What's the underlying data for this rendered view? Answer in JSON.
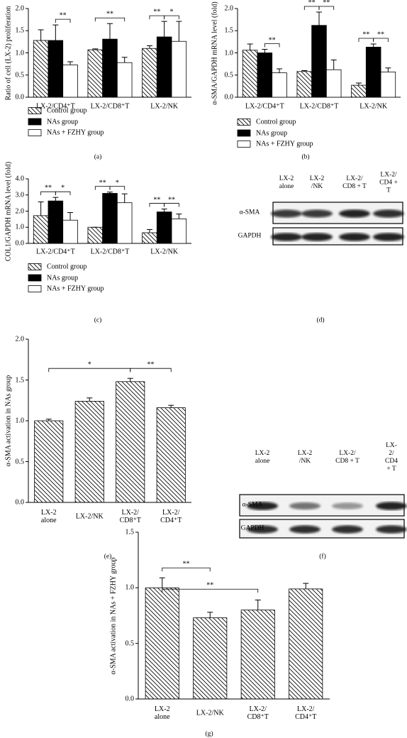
{
  "chart_data": [
    {
      "type": "grouped-bar",
      "panel_label": "(a)",
      "y_label": "Ratio of cell (LX-2) proliferation",
      "categories": [
        "LX-2/CD4⁺T",
        "LX-2/CD8⁺T",
        "LX-2/NK"
      ],
      "series": [
        {
          "name": "Control group",
          "color": "#ffffff",
          "hatch": true,
          "values": [
            1.28,
            1.07,
            1.1
          ],
          "errors": [
            0.24,
            0.02,
            0.06
          ]
        },
        {
          "name": "NAs group",
          "color": "#000000",
          "values": [
            1.28,
            1.31,
            1.36
          ],
          "errors": [
            0.35,
            0.35,
            0.35
          ]
        },
        {
          "name": "NAs + FZHY group",
          "color": "#ffffff",
          "values": [
            0.73,
            0.78,
            1.26
          ],
          "errors": [
            0.07,
            0.12,
            0.45
          ]
        }
      ],
      "annotations": [
        "**",
        "**",
        "**",
        "*"
      ],
      "ylim": [
        0,
        2.0
      ],
      "yticks": [
        {
          "value": 0,
          "label": "0.0"
        },
        {
          "value": 0.5,
          "label": "0.5"
        },
        {
          "value": 1,
          "label": "1.0"
        },
        {
          "value": 1.5,
          "label": "1.5"
        },
        {
          "value": 2,
          "label": "2.0"
        }
      ]
    },
    {
      "type": "grouped-bar",
      "panel_label": "(b)",
      "y_label": "α-SMA/GAPDH mRNA level (fold)",
      "categories": [
        "LX-2/CD4⁺T",
        "LX-2/CD8⁺T",
        "LX-2/NK"
      ],
      "series": [
        {
          "name": "Control group",
          "color": "#ffffff",
          "hatch": true,
          "values": [
            1.06,
            0.58,
            0.27
          ],
          "errors": [
            0.14,
            0.02,
            0.05
          ]
        },
        {
          "name": "NAs group",
          "color": "#000000",
          "values": [
            1.0,
            1.62,
            1.13
          ],
          "errors": [
            0.08,
            0.3,
            0.07
          ]
        },
        {
          "name": "NAs + FZHY group",
          "color": "#ffffff",
          "values": [
            0.55,
            0.62,
            0.57
          ],
          "errors": [
            0.09,
            0.22,
            0.09
          ]
        }
      ],
      "annotations": [
        "**",
        "**",
        "**",
        "**",
        "**"
      ],
      "ylim": [
        0,
        2.0
      ],
      "yticks": [
        {
          "value": 0,
          "label": "0.0"
        },
        {
          "value": 0.5,
          "label": "0.5"
        },
        {
          "value": 1,
          "label": "1.0"
        },
        {
          "value": 1.5,
          "label": "1.5"
        },
        {
          "value": 2,
          "label": "2.0"
        }
      ]
    },
    {
      "type": "grouped-bar",
      "panel_label": "(c)",
      "y_label": "COL1/GAPDH mRNA level (fold)",
      "categories": [
        "LX-2/CD4⁺T",
        "LX-2/CD8⁺T",
        "LX-2/NK"
      ],
      "series": [
        {
          "name": "Control group",
          "color": "#ffffff",
          "hatch": true,
          "values": [
            1.72,
            1.0,
            0.66
          ],
          "errors": [
            0.85,
            0.0,
            0.2
          ]
        },
        {
          "name": "NAs group",
          "color": "#000000",
          "values": [
            2.63,
            3.1,
            1.95
          ],
          "errors": [
            0.22,
            0.08,
            0.18
          ]
        },
        {
          "name": "NAs + FZHY group",
          "color": "#ffffff",
          "values": [
            1.44,
            2.52,
            1.52
          ],
          "errors": [
            0.47,
            0.55,
            0.3
          ]
        }
      ],
      "annotations": [
        "**",
        "*",
        "**",
        "*",
        "**",
        "**"
      ],
      "ylim": [
        0,
        4.0
      ],
      "yticks": [
        {
          "value": 0,
          "label": "0.0"
        },
        {
          "value": 1,
          "label": "1.0"
        },
        {
          "value": 2,
          "label": "2.0"
        },
        {
          "value": 3,
          "label": "3.0"
        },
        {
          "value": 4,
          "label": "4.0"
        }
      ]
    },
    {
      "type": "western-blot",
      "panel_label": "(d)",
      "columns": [
        "LX-2\nalone",
        "LX-2\n/NK",
        "LX-2/\nCD8 + T",
        "LX-2/\nCD4 + T"
      ],
      "rows": [
        "α-SMA",
        "GAPDH"
      ]
    },
    {
      "type": "bar",
      "panel_label": "(e)",
      "y_label": "α-SMA activation in NAs group",
      "categories": [
        "LX-2\nalone",
        "LX-2/NK",
        "LX-2/\nCD8⁺T",
        "LX-2/\nCD4⁺T"
      ],
      "values": [
        1.0,
        1.24,
        1.48,
        1.16
      ],
      "errors": [
        0.02,
        0.04,
        0.04,
        0.03
      ],
      "color": "#ffffff",
      "hatch": true,
      "annotations": [
        "*",
        "**"
      ],
      "ylim": [
        0,
        2.0
      ],
      "yticks": [
        {
          "value": 0,
          "label": "0.0"
        },
        {
          "value": 0.5,
          "label": "0.5"
        },
        {
          "value": 1,
          "label": "1.0"
        },
        {
          "value": 1.5,
          "label": "1.5"
        },
        {
          "value": 2,
          "label": "2.0"
        }
      ]
    },
    {
      "type": "western-blot",
      "panel_label": "(f)",
      "columns": [
        "LX-2\nalone",
        "LX-2\n/NK",
        "LX-2/\nCD8 + T",
        "LX-2/\nCD4 + T"
      ],
      "rows": [
        "α-SMA",
        "GAPDH"
      ]
    },
    {
      "type": "bar",
      "panel_label": "(g)",
      "y_label": "α-SMA activation in NAs + FZHY group",
      "categories": [
        "LX-2\nalone",
        "LX-2/NK",
        "LX-2/\nCD8⁺T",
        "LX-2/\nCD4⁺T"
      ],
      "values": [
        1.0,
        0.73,
        0.8,
        0.99
      ],
      "errors": [
        0.09,
        0.05,
        0.09,
        0.05
      ],
      "color": "#ffffff",
      "hatch": true,
      "annotations": [
        "**",
        "**"
      ],
      "ylim": [
        0,
        1.5
      ],
      "yticks": [
        {
          "value": 0,
          "label": "0.0"
        },
        {
          "value": 0.5,
          "label": "0.5"
        },
        {
          "value": 1,
          "label": "1.0"
        },
        {
          "value": 1.5,
          "label": "1.5"
        }
      ]
    }
  ]
}
